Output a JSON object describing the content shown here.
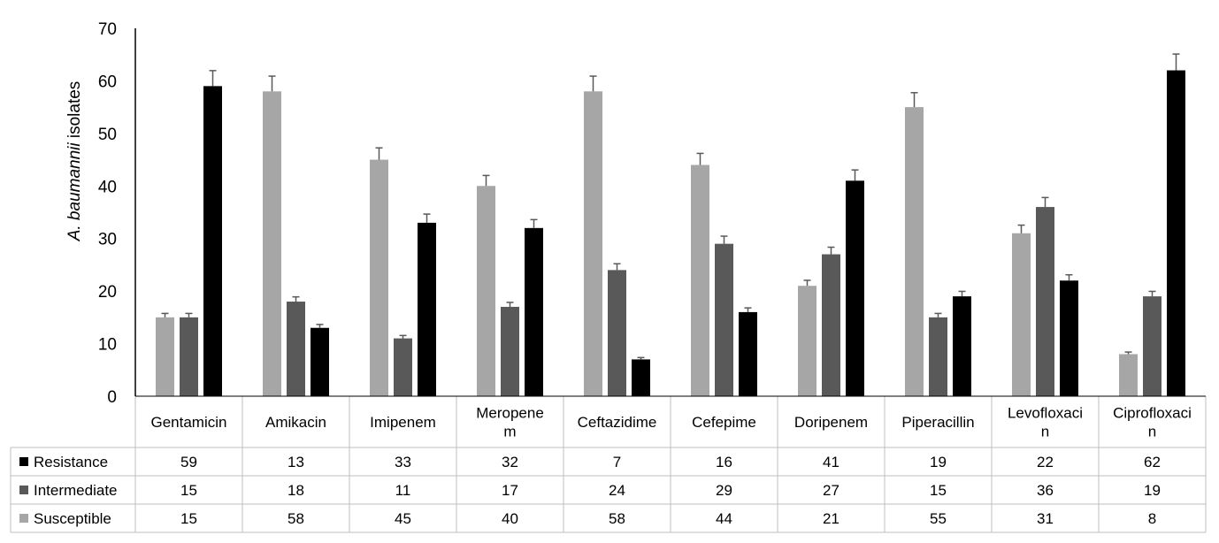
{
  "chart_data": {
    "type": "bar",
    "ylabel_italic": "A. baumannii",
    "ylabel_rest": " isolates",
    "ylim": [
      0,
      70
    ],
    "yticks": [
      0,
      10,
      20,
      30,
      40,
      50,
      60,
      70
    ],
    "categories": [
      [
        "Gentamicin"
      ],
      [
        "Amikacin"
      ],
      [
        "Imipenem"
      ],
      [
        "Meropene",
        "m"
      ],
      [
        "Ceftazidime"
      ],
      [
        "Cefepime"
      ],
      [
        "Doripenem"
      ],
      [
        "Piperacillin"
      ],
      [
        "Levofloxaci",
        "n"
      ],
      [
        "Ciprofloxaci",
        "n"
      ]
    ],
    "bar_order": [
      "Susceptible",
      "Intermediate",
      "Resistance"
    ],
    "series": [
      {
        "name": "Resistance",
        "color": "#000000",
        "values": [
          59,
          13,
          33,
          32,
          7,
          16,
          41,
          19,
          22,
          62
        ]
      },
      {
        "name": "Intermediate",
        "color": "#595959",
        "values": [
          15,
          18,
          11,
          17,
          24,
          29,
          27,
          15,
          36,
          19
        ]
      },
      {
        "name": "Susceptible",
        "color": "#a6a6a6",
        "values": [
          15,
          58,
          45,
          40,
          58,
          44,
          21,
          55,
          31,
          8
        ]
      }
    ],
    "error_bar_fraction": 0.05,
    "grid": false,
    "legend": "data-table"
  }
}
